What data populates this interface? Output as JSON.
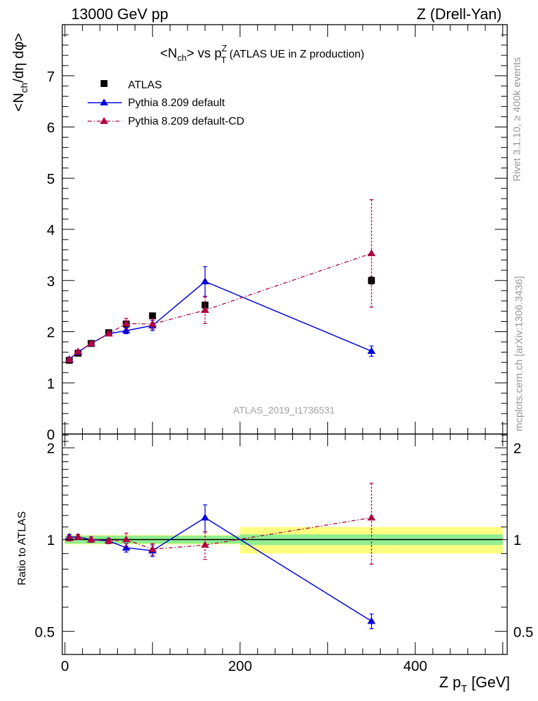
{
  "header": {
    "left": "13000 GeV pp",
    "right": "Z (Drell-Yan)"
  },
  "side_labels": {
    "rivet": "Rivet 3.1.10, ≥ 400k events",
    "mcplots": "mcplots.cern.ch [arXiv:1306.3436]"
  },
  "watermark": "ATLAS_2019_I1736531",
  "colors": {
    "atlas": "#000000",
    "default": "#0000e0",
    "default_cd": "#b00040",
    "band_inner": "#90ee90",
    "band_outer": "#ffff80"
  },
  "chart_data": [
    {
      "type": "scatter",
      "panel": "main",
      "title": "<N_ch> vs p_T^Z (ATLAS UE in Z production)",
      "title_parts": {
        "a": "<N",
        "a_sub": "ch",
        "b": "> vs p",
        "b_sup": "Z",
        "b_sub": "T",
        "c": " (ATLAS UE in Z production)"
      },
      "ylabel": "<N_ch/dη dφ>",
      "ylabel_parts": {
        "a": "<N",
        "a_sub": "ch",
        "b": "/dη dφ>"
      },
      "xlim": [
        -3,
        505
      ],
      "ylim": [
        0,
        8
      ],
      "y_ticks": [
        "0",
        "1",
        "2",
        "3",
        "4",
        "5",
        "6",
        "7"
      ],
      "legend_position": "top-left",
      "series": [
        {
          "name": "ATLAS",
          "marker": "square",
          "x": [
            5,
            15,
            30,
            50,
            70,
            100,
            160,
            350
          ],
          "y": [
            1.44,
            1.58,
            1.77,
            1.98,
            2.15,
            2.31,
            2.52,
            3.0
          ],
          "yerr": [
            0.02,
            0.02,
            0.02,
            0.03,
            0.03,
            0.04,
            0.05,
            0.07
          ]
        },
        {
          "name": "Pythia 8.209 default",
          "marker": "triangle",
          "line": "solid",
          "x": [
            5,
            15,
            30,
            50,
            70,
            100,
            160,
            350
          ],
          "y": [
            1.46,
            1.6,
            1.77,
            1.96,
            2.02,
            2.12,
            2.98,
            1.62
          ],
          "yerr": [
            0.02,
            0.03,
            0.03,
            0.04,
            0.06,
            0.1,
            0.29,
            0.1
          ]
        },
        {
          "name": "Pythia 8.209 default-CD",
          "marker": "triangle",
          "line": "dashdot",
          "x": [
            5,
            15,
            30,
            50,
            70,
            100,
            160,
            350
          ],
          "y": [
            1.45,
            1.61,
            1.77,
            1.96,
            2.16,
            2.15,
            2.42,
            3.53
          ],
          "yerr": [
            0.02,
            0.03,
            0.03,
            0.04,
            0.1,
            0.1,
            0.26,
            1.05
          ]
        }
      ]
    },
    {
      "type": "scatter",
      "panel": "ratio",
      "ylabel": "Ratio to ATLAS",
      "xlabel": "Z p_T [GeV]",
      "xlabel_parts": {
        "a": "Z p",
        "sub": "T",
        "b": " [GeV]"
      },
      "xlim": [
        -3,
        505
      ],
      "ylim": [
        0.42,
        2.22
      ],
      "y_ticks": [
        "0.5",
        "1",
        "2"
      ],
      "x_ticks": [
        "0",
        "200",
        "400"
      ],
      "reference_line": 1.0,
      "uncertainty_band": {
        "edges": [
          0,
          200,
          500
        ],
        "inner": [
          0.03,
          0.04
        ],
        "outer": [
          0.035,
          0.1
        ]
      },
      "series": [
        {
          "name": "Pythia 8.209 default",
          "x": [
            5,
            15,
            30,
            50,
            70,
            100,
            160,
            350
          ],
          "y": [
            1.02,
            1.02,
            1.0,
            0.99,
            0.94,
            0.92,
            1.18,
            0.54
          ],
          "yerr": [
            0.02,
            0.02,
            0.02,
            0.02,
            0.03,
            0.04,
            0.12,
            0.03
          ]
        },
        {
          "name": "Pythia 8.209 default-CD",
          "x": [
            5,
            15,
            30,
            50,
            70,
            100,
            160,
            350
          ],
          "y": [
            1.01,
            1.02,
            1.0,
            0.99,
            1.0,
            0.93,
            0.96,
            1.18
          ],
          "yerr": [
            0.02,
            0.02,
            0.02,
            0.02,
            0.05,
            0.04,
            0.1,
            0.35
          ]
        }
      ]
    }
  ]
}
